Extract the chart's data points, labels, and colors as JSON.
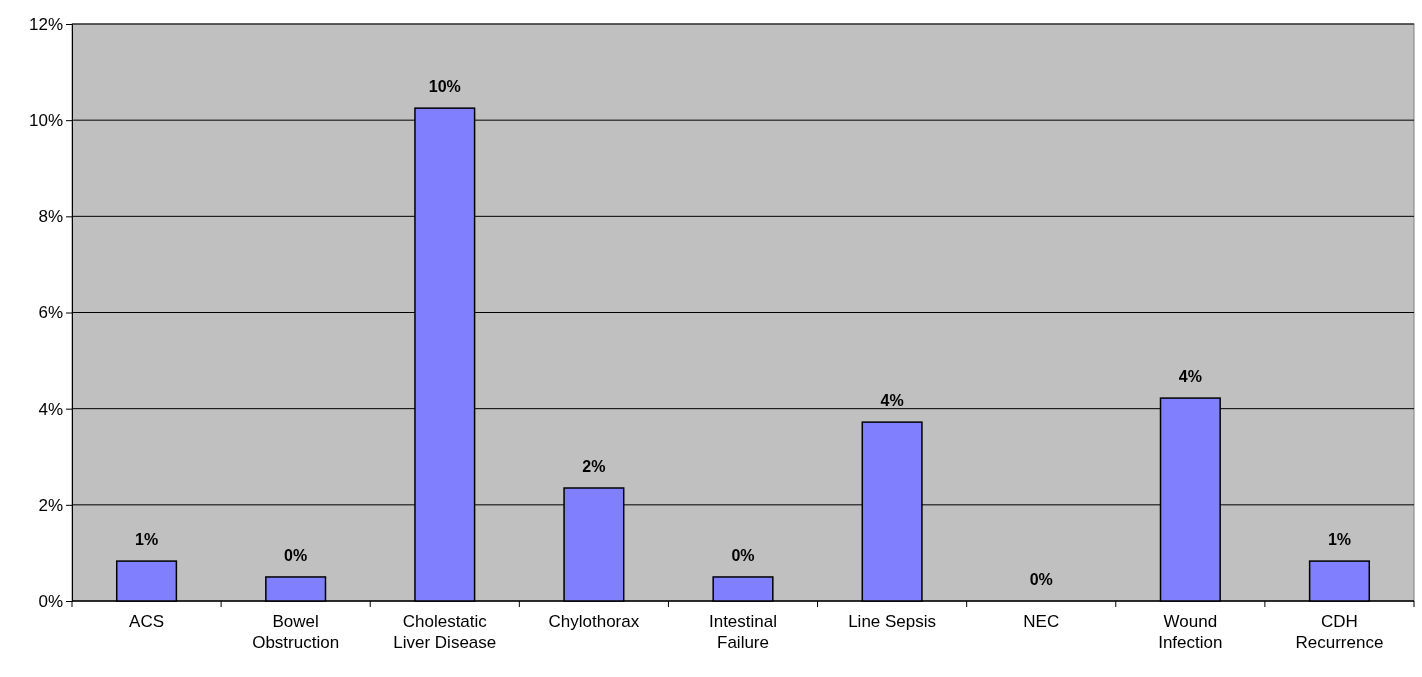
{
  "chart_data": {
    "type": "bar",
    "categories": [
      "ACS",
      "Bowel Obstruction",
      "Cholestatic Liver Disease",
      "Chylothorax",
      "Intestinal Failure",
      "Line Sepsis",
      "NEC",
      "Wound Infection",
      "CDH Recurrence"
    ],
    "values": [
      0.83,
      0.5,
      10.25,
      2.35,
      0.5,
      3.72,
      0,
      4.22,
      0.83
    ],
    "value_labels": [
      "1%",
      "0%",
      "10%",
      "2%",
      "0%",
      "4%",
      "0%",
      "4%",
      "1%"
    ],
    "color": "#8080ff",
    "ylim": [
      0,
      12
    ],
    "yticks": [
      {
        "value": 0,
        "label": "0%"
      },
      {
        "value": 2,
        "label": "2%"
      },
      {
        "value": 4,
        "label": "4%"
      },
      {
        "value": 6,
        "label": "6%"
      },
      {
        "value": 8,
        "label": "8%"
      },
      {
        "value": 10,
        "label": "10%"
      },
      {
        "value": 12,
        "label": "12%"
      }
    ],
    "grid": "y"
  }
}
